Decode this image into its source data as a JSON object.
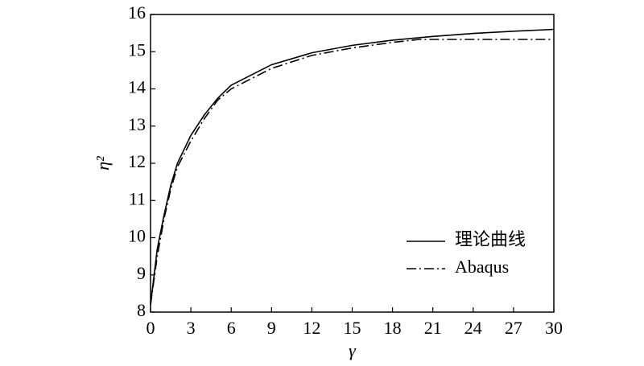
{
  "chart_data": {
    "type": "line",
    "x_label": "γ",
    "y_label": "η²",
    "xlim": [
      0,
      30
    ],
    "xticks": [
      0,
      3,
      6,
      9,
      12,
      15,
      18,
      21,
      24,
      27,
      30
    ],
    "ylim": [
      8,
      16
    ],
    "yticks": [
      8,
      9,
      10,
      11,
      12,
      13,
      14,
      15,
      16
    ],
    "legend": "lower right",
    "series": [
      {
        "name": "理论曲线",
        "color": "#000000",
        "dash": "solid",
        "x": [
          0,
          0.5,
          1,
          1.5,
          2,
          3,
          4,
          5,
          6,
          9,
          12,
          15,
          18,
          21,
          24,
          27,
          30
        ],
        "values": [
          8.2,
          9.7,
          10.6,
          11.4,
          12.0,
          12.75,
          13.3,
          13.75,
          14.1,
          14.65,
          14.97,
          15.17,
          15.31,
          15.41,
          15.49,
          15.55,
          15.6
        ]
      },
      {
        "name": "Abaqus",
        "color": "#000000",
        "dash": "dashdot",
        "x": [
          0,
          0.5,
          1,
          1.5,
          2,
          3,
          4,
          5,
          6,
          9,
          12,
          15,
          18,
          20,
          24,
          30
        ],
        "values": [
          8.2,
          9.5,
          10.5,
          11.3,
          11.9,
          12.6,
          13.2,
          13.7,
          14.0,
          14.55,
          14.9,
          15.1,
          15.25,
          15.33,
          15.33,
          15.33
        ]
      }
    ]
  }
}
